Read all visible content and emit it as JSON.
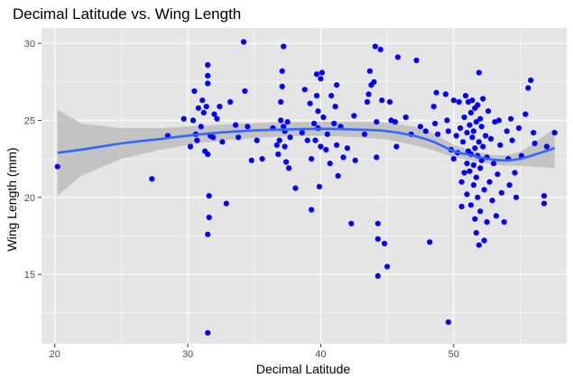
{
  "chart_data": {
    "type": "scatter",
    "title": "Decimal Latitude vs. Wing Length",
    "xlabel": "Decimal Latitude",
    "ylabel": "Wing Length (mm)",
    "xlim": [
      19,
      58.5
    ],
    "ylim": [
      10.5,
      31
    ],
    "x_ticks": [
      20,
      30,
      40,
      50
    ],
    "y_ticks": [
      15,
      20,
      25,
      30
    ],
    "grid": true,
    "legend": "none",
    "colors": {
      "panel": "#e5e5e5",
      "grid": "#ffffff",
      "points": "#0000ff",
      "smooth_line": "#3366ff",
      "confidence_band": "#bdbdbd"
    },
    "points": [
      [
        20.2,
        22.0
      ],
      [
        27.3,
        21.2
      ],
      [
        28.5,
        24.0
      ],
      [
        29.7,
        25.1
      ],
      [
        30.2,
        23.3
      ],
      [
        30.4,
        25.0
      ],
      [
        30.5,
        26.9
      ],
      [
        30.6,
        24.1
      ],
      [
        30.7,
        23.7
      ],
      [
        30.8,
        25.8
      ],
      [
        31.0,
        24.6
      ],
      [
        31.1,
        26.3
      ],
      [
        31.2,
        25.5
      ],
      [
        31.3,
        23.0
      ],
      [
        31.4,
        25.9
      ],
      [
        31.5,
        27.4
      ],
      [
        31.5,
        28.6
      ],
      [
        31.5,
        27.9
      ],
      [
        31.5,
        22.8
      ],
      [
        31.6,
        20.1
      ],
      [
        31.6,
        18.7
      ],
      [
        31.5,
        17.6
      ],
      [
        31.5,
        11.2
      ],
      [
        31.7,
        24.0
      ],
      [
        31.9,
        23.9
      ],
      [
        32.0,
        25.4
      ],
      [
        32.2,
        25.1
      ],
      [
        32.4,
        25.9
      ],
      [
        32.6,
        23.6
      ],
      [
        32.9,
        19.6
      ],
      [
        33.2,
        26.2
      ],
      [
        33.6,
        24.7
      ],
      [
        33.8,
        23.9
      ],
      [
        34.2,
        30.1
      ],
      [
        34.3,
        26.9
      ],
      [
        34.5,
        24.6
      ],
      [
        34.8,
        22.4
      ],
      [
        35.2,
        23.7
      ],
      [
        35.6,
        22.5
      ],
      [
        36.4,
        24.5
      ],
      [
        36.7,
        23.4
      ],
      [
        36.8,
        22.8
      ],
      [
        36.9,
        23.7
      ],
      [
        37.0,
        26.2
      ],
      [
        37.0,
        25.0
      ],
      [
        37.1,
        27.2
      ],
      [
        37.1,
        28.2
      ],
      [
        37.2,
        29.8
      ],
      [
        37.2,
        24.6
      ],
      [
        37.3,
        24.3
      ],
      [
        37.3,
        23.3
      ],
      [
        37.4,
        22.3
      ],
      [
        37.5,
        24.9
      ],
      [
        37.6,
        21.9
      ],
      [
        37.7,
        23.9
      ],
      [
        38.1,
        20.6
      ],
      [
        38.6,
        24.2
      ],
      [
        38.8,
        27.0
      ],
      [
        39.0,
        23.7
      ],
      [
        39.2,
        26.1
      ],
      [
        39.3,
        22.5
      ],
      [
        39.3,
        19.2
      ],
      [
        39.5,
        24.8
      ],
      [
        39.6,
        23.7
      ],
      [
        39.7,
        28.0
      ],
      [
        39.7,
        26.6
      ],
      [
        39.8,
        24.5
      ],
      [
        39.8,
        25.6
      ],
      [
        39.9,
        20.7
      ],
      [
        40.0,
        23.3
      ],
      [
        40.0,
        27.7
      ],
      [
        40.1,
        28.1
      ],
      [
        40.2,
        25.2
      ],
      [
        40.4,
        23.1
      ],
      [
        40.5,
        24.1
      ],
      [
        40.7,
        22.2
      ],
      [
        40.8,
        26.6
      ],
      [
        41.0,
        24.8
      ],
      [
        41.1,
        25.9
      ],
      [
        41.2,
        27.3
      ],
      [
        41.2,
        23.4
      ],
      [
        41.3,
        21.4
      ],
      [
        41.5,
        24.6
      ],
      [
        41.7,
        22.6
      ],
      [
        42.0,
        23.2
      ],
      [
        42.3,
        18.3
      ],
      [
        42.5,
        25.3
      ],
      [
        42.6,
        22.4
      ],
      [
        43.3,
        24.1
      ],
      [
        43.5,
        26.2
      ],
      [
        43.6,
        26.7
      ],
      [
        43.7,
        28.2
      ],
      [
        43.8,
        27.3
      ],
      [
        44.0,
        27.5
      ],
      [
        44.1,
        29.8
      ],
      [
        44.2,
        24.9
      ],
      [
        44.2,
        22.6
      ],
      [
        44.3,
        17.3
      ],
      [
        44.3,
        18.3
      ],
      [
        44.5,
        29.6
      ],
      [
        44.6,
        26.3
      ],
      [
        44.8,
        17.0
      ],
      [
        44.3,
        14.9
      ],
      [
        45.0,
        15.5
      ],
      [
        45.2,
        26.2
      ],
      [
        45.3,
        25.0
      ],
      [
        45.6,
        24.9
      ],
      [
        45.7,
        23.3
      ],
      [
        45.8,
        29.1
      ],
      [
        46.4,
        25.2
      ],
      [
        46.8,
        24.1
      ],
      [
        47.2,
        28.9
      ],
      [
        47.5,
        24.6
      ],
      [
        47.9,
        24.3
      ],
      [
        48.2,
        17.1
      ],
      [
        48.5,
        25.9
      ],
      [
        48.6,
        24.8
      ],
      [
        48.7,
        26.8
      ],
      [
        48.8,
        24.1
      ],
      [
        49.4,
        26.7
      ],
      [
        49.5,
        25.0
      ],
      [
        49.6,
        24.3
      ],
      [
        49.6,
        11.9
      ],
      [
        49.8,
        23.1
      ],
      [
        50.0,
        26.3
      ],
      [
        50.0,
        22.5
      ],
      [
        50.2,
        24.0
      ],
      [
        50.3,
        22.9
      ],
      [
        50.4,
        26.2
      ],
      [
        50.5,
        24.5
      ],
      [
        50.6,
        21.0
      ],
      [
        50.6,
        19.4
      ],
      [
        50.7,
        23.6
      ],
      [
        50.8,
        25.2
      ],
      [
        50.8,
        21.6
      ],
      [
        50.9,
        26.6
      ],
      [
        51.0,
        24.2
      ],
      [
        51.0,
        22.2
      ],
      [
        51.0,
        20.2
      ],
      [
        51.1,
        23.0
      ],
      [
        51.1,
        26.2
      ],
      [
        51.2,
        24.7
      ],
      [
        51.2,
        21.7
      ],
      [
        51.3,
        25.5
      ],
      [
        51.3,
        22.8
      ],
      [
        51.3,
        19.5
      ],
      [
        51.4,
        23.9
      ],
      [
        51.4,
        26.3
      ],
      [
        51.5,
        20.8
      ],
      [
        51.5,
        24.3
      ],
      [
        51.5,
        22.1
      ],
      [
        51.6,
        25.8
      ],
      [
        51.6,
        23.2
      ],
      [
        51.6,
        18.6
      ],
      [
        51.7,
        17.7
      ],
      [
        51.7,
        21.3
      ],
      [
        51.7,
        24.9
      ],
      [
        51.8,
        26.0
      ],
      [
        51.8,
        20.0
      ],
      [
        51.8,
        22.7
      ],
      [
        51.9,
        16.9
      ],
      [
        51.9,
        28.1
      ],
      [
        51.9,
        23.6
      ],
      [
        52.0,
        25.1
      ],
      [
        52.0,
        19.1
      ],
      [
        52.0,
        21.9
      ],
      [
        52.1,
        24.6
      ],
      [
        52.1,
        22.4
      ],
      [
        52.2,
        26.4
      ],
      [
        52.2,
        23.3
      ],
      [
        52.3,
        17.2
      ],
      [
        52.3,
        20.5
      ],
      [
        52.4,
        24.0
      ],
      [
        52.5,
        22.6
      ],
      [
        52.5,
        18.4
      ],
      [
        52.6,
        25.6
      ],
      [
        52.7,
        21.0
      ],
      [
        52.8,
        23.8
      ],
      [
        52.9,
        19.8
      ],
      [
        53.0,
        22.2
      ],
      [
        53.1,
        24.9
      ],
      [
        53.2,
        18.8
      ],
      [
        53.3,
        21.5
      ],
      [
        53.4,
        25.0
      ],
      [
        53.5,
        23.4
      ],
      [
        53.6,
        20.3
      ],
      [
        53.8,
        18.4
      ],
      [
        54.0,
        24.3
      ],
      [
        54.1,
        22.5
      ],
      [
        54.2,
        20.8
      ],
      [
        54.3,
        25.1
      ],
      [
        54.4,
        23.7
      ],
      [
        54.6,
        21.6
      ],
      [
        54.7,
        20.0
      ],
      [
        54.9,
        24.5
      ],
      [
        55.1,
        22.7
      ],
      [
        55.4,
        25.4
      ],
      [
        55.6,
        27.1
      ],
      [
        55.8,
        27.6
      ],
      [
        56.0,
        24.2
      ],
      [
        56.1,
        23.5
      ],
      [
        56.8,
        20.1
      ],
      [
        56.8,
        19.6
      ],
      [
        57.0,
        23.3
      ],
      [
        57.6,
        24.2
      ]
    ],
    "smooth_fit": {
      "x": [
        20.2,
        22,
        25,
        28,
        31,
        34,
        37,
        40,
        43,
        45,
        47,
        48.5,
        50,
        51,
        52,
        53,
        54,
        55,
        56,
        57.6
      ],
      "y": [
        22.9,
        23.1,
        23.5,
        23.8,
        24.1,
        24.3,
        24.4,
        24.45,
        24.4,
        24.3,
        24.0,
        23.6,
        23.0,
        22.8,
        22.6,
        22.45,
        22.4,
        22.5,
        22.75,
        23.2
      ],
      "lower": [
        20.1,
        21.4,
        22.5,
        23.1,
        23.55,
        23.8,
        23.95,
        24.0,
        23.9,
        23.75,
        23.4,
        23.05,
        22.6,
        22.45,
        22.3,
        22.15,
        22.05,
        22.05,
        22.0,
        21.9
      ],
      "upper": [
        25.7,
        24.8,
        24.5,
        24.5,
        24.65,
        24.8,
        24.85,
        24.9,
        24.9,
        24.85,
        24.6,
        24.15,
        23.4,
        23.15,
        22.9,
        22.75,
        22.75,
        22.95,
        23.5,
        24.5
      ]
    }
  }
}
